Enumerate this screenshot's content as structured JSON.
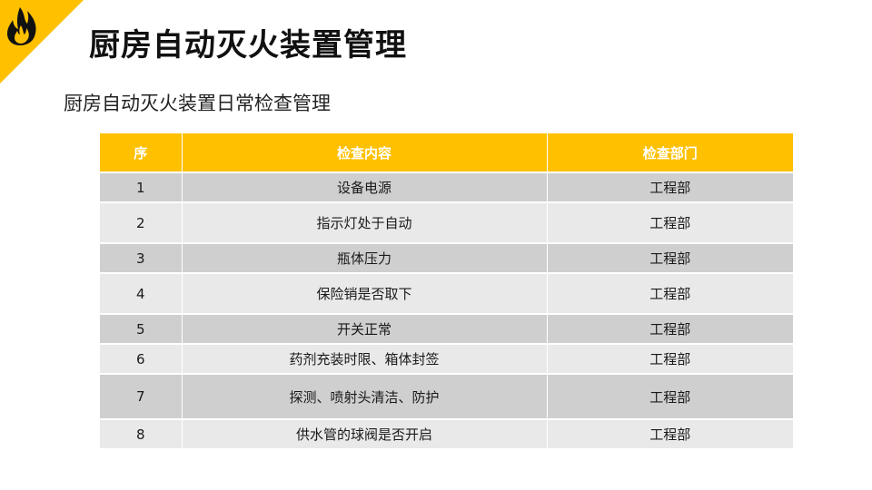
{
  "slide": {
    "title": "厨房自动灭火装置管理",
    "subtitle": "厨房自动灭火装置日常检查管理"
  },
  "colors": {
    "accent": "#ffc000",
    "row_dark": "#cfcfcf",
    "row_light": "#e9e9e9"
  },
  "table": {
    "headers": [
      "序",
      "检查内容",
      "检查部门"
    ],
    "rows": [
      [
        "1",
        "设备电源",
        "工程部"
      ],
      [
        "2",
        "指示灯处于自动",
        "工程部"
      ],
      [
        "3",
        "瓶体压力",
        "工程部"
      ],
      [
        "4",
        "保险销是否取下",
        "工程部"
      ],
      [
        "5",
        "开关正常",
        "工程部"
      ],
      [
        "6",
        "药剂充装时限、箱体封签",
        "工程部"
      ],
      [
        "7",
        "探测、喷射头清洁、防护",
        "工程部"
      ],
      [
        "8",
        "供水管的球阀是否开启",
        "工程部"
      ]
    ]
  }
}
